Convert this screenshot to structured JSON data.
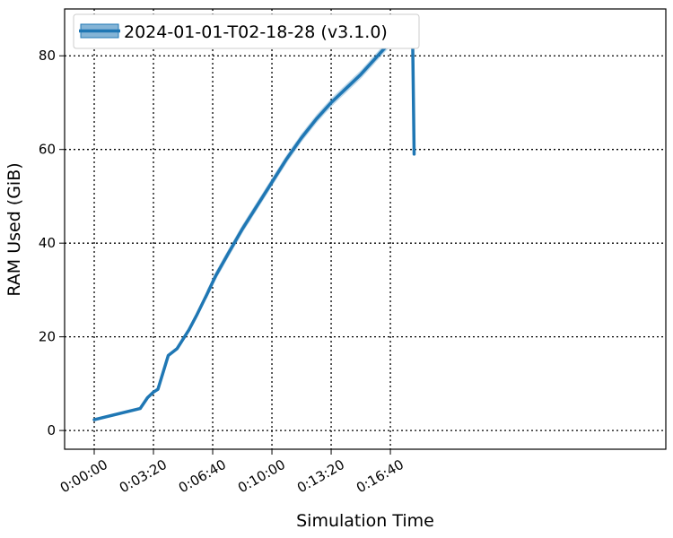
{
  "chart_data": {
    "type": "line",
    "xlabel": "Simulation Time",
    "ylabel": "RAM Used (GiB)",
    "xlim": [
      -100,
      1930
    ],
    "ylim": [
      -4,
      90
    ],
    "x_ticks": [
      {
        "value": 0,
        "label": "0:00:00"
      },
      {
        "value": 200,
        "label": "0:03:20"
      },
      {
        "value": 400,
        "label": "0:06:40"
      },
      {
        "value": 600,
        "label": "0:10:00"
      },
      {
        "value": 800,
        "label": "0:13:20"
      },
      {
        "value": 1000,
        "label": "0:16:40"
      }
    ],
    "y_ticks": [
      {
        "value": 0,
        "label": "0"
      },
      {
        "value": 20,
        "label": "20"
      },
      {
        "value": 40,
        "label": "40"
      },
      {
        "value": 60,
        "label": "60"
      },
      {
        "value": 80,
        "label": "80"
      }
    ],
    "grid": true,
    "legend_position": "top-left",
    "series": [
      {
        "name": "2024-01-01-T02-18-28 (v3.1.0)",
        "color": "#1f77b4",
        "x": [
          0,
          155,
          180,
          200,
          215,
          250,
          280,
          320,
          345,
          380,
          410,
          450,
          500,
          550,
          600,
          650,
          700,
          750,
          800,
          850,
          900,
          950,
          1000,
          1040,
          1065,
          1075,
          1080
        ],
        "y": [
          2.3,
          4.7,
          7.0,
          8.2,
          8.8,
          16.0,
          17.5,
          21.5,
          24.5,
          29.0,
          33.0,
          37.5,
          43.0,
          48.0,
          53.0,
          58.0,
          62.5,
          66.5,
          70.0,
          73.0,
          76.0,
          79.5,
          83.0,
          84.2,
          84.6,
          84.4,
          59.0
        ]
      }
    ],
    "error_band": {
      "x_start": 380,
      "x_end": 1078,
      "spread": 0.9
    }
  }
}
